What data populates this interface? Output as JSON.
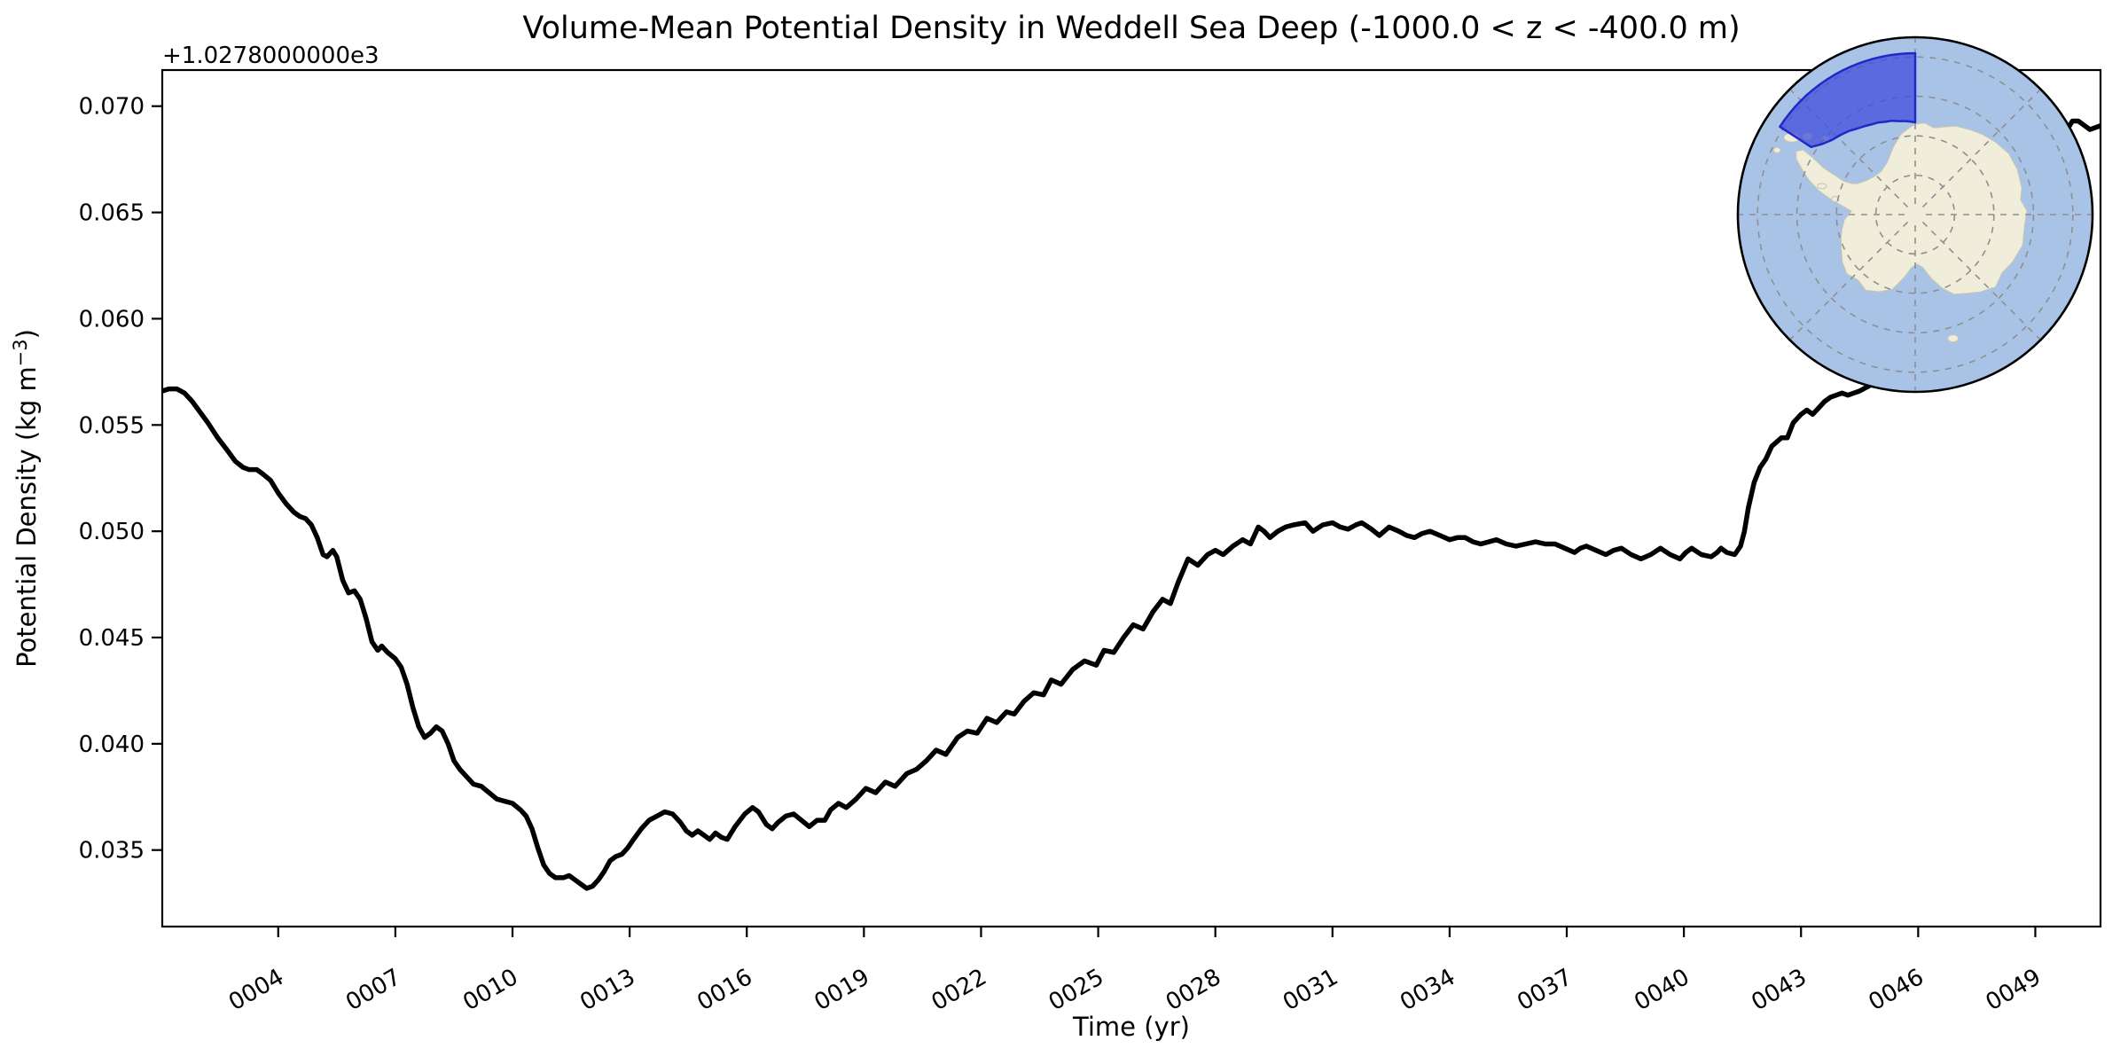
{
  "chart_data": {
    "type": "line",
    "title": "Volume-Mean Potential Density in Weddell Sea Deep (-1000.0 < z < -400.0 m)",
    "xlabel": "Time (yr)",
    "ylabel": "Potential Density (kg m⁻³)",
    "ylabel_parts": [
      "Potential Density (kg m",
      "−3",
      ")"
    ],
    "y_offset_text": "+1.0278000000e3",
    "y_offset_value": 1027.8,
    "xlim": [
      1.03,
      50.67
    ],
    "ylim": [
      0.0314,
      0.0717
    ],
    "grid": false,
    "legend": null,
    "x_ticks": {
      "values": [
        4,
        7,
        10,
        13,
        16,
        19,
        22,
        25,
        28,
        31,
        34,
        37,
        40,
        43,
        46,
        49
      ],
      "labels": [
        "0004",
        "0007",
        "0010",
        "0013",
        "0016",
        "0019",
        "0022",
        "0025",
        "0028",
        "0031",
        "0034",
        "0037",
        "0040",
        "0043",
        "0046",
        "0049"
      ],
      "rotation_deg": 30
    },
    "y_ticks": {
      "values": [
        0.035,
        0.04,
        0.045,
        0.05,
        0.055,
        0.06,
        0.065,
        0.07
      ],
      "labels": [
        "0.035",
        "0.040",
        "0.045",
        "0.050",
        "0.055",
        "0.060",
        "0.065",
        "0.070"
      ]
    },
    "series": [
      {
        "name": "volume_mean_potential_density",
        "units": "kg m-3, values relative to offset 1027.8",
        "color": "#000000",
        "linewidth": 5.5,
        "points": [
          [
            1.03,
            0.0566
          ],
          [
            1.2,
            0.0567
          ],
          [
            1.4,
            0.0567
          ],
          [
            1.6,
            0.0565
          ],
          [
            1.8,
            0.0561
          ],
          [
            2.0,
            0.0556
          ],
          [
            2.2,
            0.0551
          ],
          [
            2.45,
            0.0544
          ],
          [
            2.7,
            0.0538
          ],
          [
            2.9,
            0.0533
          ],
          [
            3.1,
            0.053
          ],
          [
            3.25,
            0.0529
          ],
          [
            3.45,
            0.0529
          ],
          [
            3.6,
            0.0527
          ],
          [
            3.8,
            0.0524
          ],
          [
            4.0,
            0.0518
          ],
          [
            4.2,
            0.0513
          ],
          [
            4.4,
            0.0509
          ],
          [
            4.55,
            0.0507
          ],
          [
            4.7,
            0.0506
          ],
          [
            4.85,
            0.0503
          ],
          [
            5.0,
            0.0497
          ],
          [
            5.15,
            0.0489
          ],
          [
            5.25,
            0.0488
          ],
          [
            5.4,
            0.0491
          ],
          [
            5.5,
            0.0488
          ],
          [
            5.65,
            0.0477
          ],
          [
            5.8,
            0.0471
          ],
          [
            5.95,
            0.0472
          ],
          [
            6.1,
            0.0468
          ],
          [
            6.25,
            0.0459
          ],
          [
            6.4,
            0.0448
          ],
          [
            6.55,
            0.0444
          ],
          [
            6.65,
            0.0446
          ],
          [
            6.8,
            0.0443
          ],
          [
            7.0,
            0.044
          ],
          [
            7.15,
            0.0436
          ],
          [
            7.3,
            0.0428
          ],
          [
            7.45,
            0.0417
          ],
          [
            7.6,
            0.0408
          ],
          [
            7.75,
            0.0403
          ],
          [
            7.9,
            0.0405
          ],
          [
            8.05,
            0.0408
          ],
          [
            8.2,
            0.0406
          ],
          [
            8.35,
            0.04
          ],
          [
            8.5,
            0.0392
          ],
          [
            8.65,
            0.0388
          ],
          [
            8.8,
            0.0385
          ],
          [
            9.0,
            0.0381
          ],
          [
            9.2,
            0.038
          ],
          [
            9.4,
            0.0377
          ],
          [
            9.6,
            0.0374
          ],
          [
            9.8,
            0.0373
          ],
          [
            10.0,
            0.0372
          ],
          [
            10.2,
            0.0369
          ],
          [
            10.35,
            0.0366
          ],
          [
            10.5,
            0.036
          ],
          [
            10.65,
            0.0351
          ],
          [
            10.8,
            0.0343
          ],
          [
            10.95,
            0.0339
          ],
          [
            11.1,
            0.0337
          ],
          [
            11.3,
            0.0337
          ],
          [
            11.45,
            0.0338
          ],
          [
            11.6,
            0.0336
          ],
          [
            11.75,
            0.0334
          ],
          [
            11.9,
            0.0332
          ],
          [
            12.05,
            0.0333
          ],
          [
            12.2,
            0.0336
          ],
          [
            12.35,
            0.034
          ],
          [
            12.5,
            0.0345
          ],
          [
            12.65,
            0.0347
          ],
          [
            12.8,
            0.0348
          ],
          [
            12.95,
            0.0351
          ],
          [
            13.1,
            0.0355
          ],
          [
            13.3,
            0.036
          ],
          [
            13.5,
            0.0364
          ],
          [
            13.7,
            0.0366
          ],
          [
            13.9,
            0.0368
          ],
          [
            14.1,
            0.0367
          ],
          [
            14.3,
            0.0363
          ],
          [
            14.45,
            0.0359
          ],
          [
            14.6,
            0.0357
          ],
          [
            14.75,
            0.0359
          ],
          [
            14.9,
            0.0357
          ],
          [
            15.05,
            0.0355
          ],
          [
            15.2,
            0.0358
          ],
          [
            15.35,
            0.0356
          ],
          [
            15.5,
            0.0355
          ],
          [
            15.7,
            0.0361
          ],
          [
            15.95,
            0.0367
          ],
          [
            16.15,
            0.037
          ],
          [
            16.3,
            0.0368
          ],
          [
            16.5,
            0.0362
          ],
          [
            16.65,
            0.036
          ],
          [
            16.8,
            0.0363
          ],
          [
            17.0,
            0.0366
          ],
          [
            17.2,
            0.0367
          ],
          [
            17.4,
            0.0364
          ],
          [
            17.6,
            0.0361
          ],
          [
            17.8,
            0.0364
          ],
          [
            18.0,
            0.0364
          ],
          [
            18.15,
            0.0369
          ],
          [
            18.35,
            0.0372
          ],
          [
            18.55,
            0.037
          ],
          [
            18.8,
            0.0374
          ],
          [
            19.05,
            0.0379
          ],
          [
            19.3,
            0.0377
          ],
          [
            19.55,
            0.0382
          ],
          [
            19.8,
            0.038
          ],
          [
            20.1,
            0.0386
          ],
          [
            20.35,
            0.0388
          ],
          [
            20.6,
            0.0392
          ],
          [
            20.85,
            0.0397
          ],
          [
            21.1,
            0.0395
          ],
          [
            21.4,
            0.0403
          ],
          [
            21.65,
            0.0406
          ],
          [
            21.9,
            0.0405
          ],
          [
            22.15,
            0.0412
          ],
          [
            22.4,
            0.041
          ],
          [
            22.65,
            0.0415
          ],
          [
            22.85,
            0.0414
          ],
          [
            23.1,
            0.042
          ],
          [
            23.35,
            0.0424
          ],
          [
            23.6,
            0.0423
          ],
          [
            23.8,
            0.043
          ],
          [
            24.05,
            0.0428
          ],
          [
            24.35,
            0.0435
          ],
          [
            24.65,
            0.0439
          ],
          [
            24.95,
            0.0437
          ],
          [
            25.15,
            0.0444
          ],
          [
            25.4,
            0.0443
          ],
          [
            25.65,
            0.045
          ],
          [
            25.9,
            0.0456
          ],
          [
            26.15,
            0.0454
          ],
          [
            26.4,
            0.0462
          ],
          [
            26.65,
            0.0468
          ],
          [
            26.85,
            0.0466
          ],
          [
            27.05,
            0.0476
          ],
          [
            27.3,
            0.0487
          ],
          [
            27.55,
            0.0484
          ],
          [
            27.8,
            0.0489
          ],
          [
            28.0,
            0.0491
          ],
          [
            28.2,
            0.0489
          ],
          [
            28.45,
            0.0493
          ],
          [
            28.7,
            0.0496
          ],
          [
            28.9,
            0.0494
          ],
          [
            29.1,
            0.0502
          ],
          [
            29.25,
            0.05
          ],
          [
            29.4,
            0.0497
          ],
          [
            29.6,
            0.05
          ],
          [
            29.8,
            0.0502
          ],
          [
            30.0,
            0.0503
          ],
          [
            30.3,
            0.0504
          ],
          [
            30.5,
            0.05
          ],
          [
            30.75,
            0.0503
          ],
          [
            31.0,
            0.0504
          ],
          [
            31.2,
            0.0502
          ],
          [
            31.4,
            0.0501
          ],
          [
            31.6,
            0.0503
          ],
          [
            31.75,
            0.0504
          ],
          [
            32.0,
            0.0501
          ],
          [
            32.2,
            0.0498
          ],
          [
            32.45,
            0.0502
          ],
          [
            32.7,
            0.05
          ],
          [
            32.9,
            0.0498
          ],
          [
            33.1,
            0.0497
          ],
          [
            33.3,
            0.0499
          ],
          [
            33.5,
            0.05
          ],
          [
            33.75,
            0.0498
          ],
          [
            34.0,
            0.0496
          ],
          [
            34.2,
            0.0497
          ],
          [
            34.4,
            0.0497
          ],
          [
            34.6,
            0.0495
          ],
          [
            34.8,
            0.0494
          ],
          [
            35.0,
            0.0495
          ],
          [
            35.2,
            0.0496
          ],
          [
            35.45,
            0.0494
          ],
          [
            35.7,
            0.0493
          ],
          [
            35.95,
            0.0494
          ],
          [
            36.2,
            0.0495
          ],
          [
            36.45,
            0.0494
          ],
          [
            36.7,
            0.0494
          ],
          [
            36.95,
            0.0492
          ],
          [
            37.2,
            0.049
          ],
          [
            37.35,
            0.0492
          ],
          [
            37.5,
            0.0493
          ],
          [
            37.75,
            0.0491
          ],
          [
            38.0,
            0.0489
          ],
          [
            38.2,
            0.0491
          ],
          [
            38.4,
            0.0492
          ],
          [
            38.65,
            0.0489
          ],
          [
            38.9,
            0.0487
          ],
          [
            39.15,
            0.0489
          ],
          [
            39.4,
            0.0492
          ],
          [
            39.65,
            0.0489
          ],
          [
            39.9,
            0.0487
          ],
          [
            40.05,
            0.049
          ],
          [
            40.2,
            0.0492
          ],
          [
            40.45,
            0.0489
          ],
          [
            40.7,
            0.0488
          ],
          [
            40.85,
            0.049
          ],
          [
            40.95,
            0.0492
          ],
          [
            41.1,
            0.049
          ],
          [
            41.3,
            0.0489
          ],
          [
            41.45,
            0.0493
          ],
          [
            41.55,
            0.05
          ],
          [
            41.65,
            0.0511
          ],
          [
            41.8,
            0.0523
          ],
          [
            41.95,
            0.053
          ],
          [
            42.1,
            0.0534
          ],
          [
            42.25,
            0.054
          ],
          [
            42.5,
            0.0544
          ],
          [
            42.65,
            0.0544
          ],
          [
            42.8,
            0.0551
          ],
          [
            43.0,
            0.0555
          ],
          [
            43.15,
            0.0557
          ],
          [
            43.3,
            0.0555
          ],
          [
            43.45,
            0.0558
          ],
          [
            43.6,
            0.0561
          ],
          [
            43.75,
            0.0563
          ],
          [
            43.9,
            0.0564
          ],
          [
            44.05,
            0.0565
          ],
          [
            44.2,
            0.0564
          ],
          [
            44.35,
            0.0565
          ],
          [
            44.5,
            0.0566
          ],
          [
            44.8,
            0.0569
          ],
          [
            45.2,
            0.0573
          ],
          [
            45.6,
            0.0578
          ],
          [
            46.0,
            0.0584
          ],
          [
            46.4,
            0.059
          ],
          [
            46.8,
            0.0596
          ],
          [
            47.2,
            0.0603
          ],
          [
            47.6,
            0.0611
          ],
          [
            48.0,
            0.062
          ],
          [
            48.4,
            0.0632
          ],
          [
            48.8,
            0.0646
          ],
          [
            49.2,
            0.0662
          ],
          [
            49.5,
            0.0676
          ],
          [
            49.75,
            0.0687
          ],
          [
            49.95,
            0.0693
          ],
          [
            50.1,
            0.0693
          ],
          [
            50.25,
            0.0691
          ],
          [
            50.4,
            0.0689
          ],
          [
            50.55,
            0.069
          ],
          [
            50.7,
            0.0691
          ],
          [
            50.86,
            0.0691
          ]
        ]
      }
    ]
  },
  "map_inset": {
    "description": "South polar stereographic inset map of Antarctica with Weddell Sea sector highlighted",
    "colors": {
      "ocean": "#a9c3e7",
      "land": "#f0eddb",
      "land_edge": "#c9c5ae",
      "region_fill": "#3b49dc",
      "region_edge": "#2028c8",
      "graticule": "#8f8f8f",
      "border": "#000000"
    }
  },
  "colors": {
    "line": "#000000",
    "background": "#ffffff",
    "text": "#000000"
  }
}
